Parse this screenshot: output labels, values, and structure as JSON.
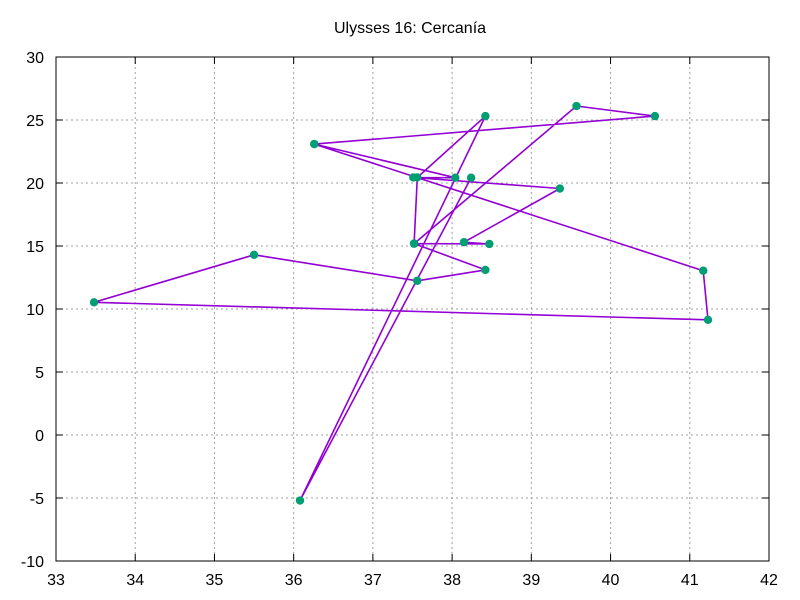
{
  "chart_data": {
    "type": "line",
    "title": "Ulysses 16: Cercanía",
    "xlabel": "",
    "ylabel": "",
    "xlim": [
      33,
      42
    ],
    "ylim": [
      -10,
      30
    ],
    "xticks": [
      33,
      34,
      35,
      36,
      37,
      38,
      39,
      40,
      41,
      42
    ],
    "yticks": [
      -10,
      -5,
      0,
      5,
      10,
      15,
      20,
      25,
      30
    ],
    "grid": true,
    "legend": "none",
    "line_color": "#9400d3",
    "marker_color": "#009e73",
    "series": [
      {
        "x": [
          38.24,
          36.08,
          38.42,
          37.56,
          37.52,
          38.47,
          38.15,
          39.36,
          37.51,
          38.04,
          36.26,
          41.17,
          41.23,
          33.48,
          35.5,
          37.56,
          38.42,
          37.52,
          39.57,
          40.56,
          36.26
        ],
        "y": [
          20.42,
          -5.2,
          25.31,
          20.44,
          15.19,
          15.16,
          15.3,
          19.56,
          20.44,
          20.42,
          23.09,
          13.04,
          9.14,
          10.53,
          14.3,
          12.24,
          13.1,
          15.19,
          26.11,
          25.31,
          23.09
        ]
      }
    ]
  }
}
